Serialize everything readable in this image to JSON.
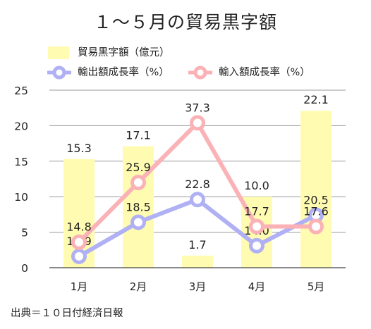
{
  "chart_data": {
    "type": "bar+line",
    "title": "１～５月の貿易黒字額",
    "categories": [
      "1月",
      "2月",
      "3月",
      "4月",
      "5月"
    ],
    "ylim": [
      0,
      25
    ],
    "yticks": [
      0,
      5,
      10,
      15,
      20,
      25
    ],
    "grid": true,
    "legend_position": "top-left",
    "series": [
      {
        "name": "貿易黒字額（億元）",
        "type": "bar",
        "color": "#fffcb2",
        "values": [
          15.3,
          17.1,
          1.7,
          10.0,
          22.1
        ],
        "labels": [
          "15.3",
          "17.1",
          "1.7",
          "10.0",
          "22.1"
        ]
      },
      {
        "name": "輸出額成長率（%）",
        "type": "line",
        "color": "#b0b0f4",
        "values": [
          1.6,
          6.4,
          9.6,
          3.1,
          7.4
        ],
        "labels": [
          "11.9",
          "18.5",
          "22.8",
          "14.0",
          "20.5"
        ]
      },
      {
        "name": "輸入額成長率（%）",
        "type": "line",
        "color": "#fab2b6",
        "values": [
          3.6,
          12.0,
          20.4,
          5.8,
          5.8
        ],
        "labels": [
          "14.8",
          "25.9",
          "37.3",
          "17.7",
          "17.6"
        ]
      }
    ]
  },
  "legend": {
    "bar_label": "貿易黒字額（億元）",
    "export_label": "輸出額成長率（%）",
    "import_label": "輸入額成長率（%）"
  },
  "source_note": "出典＝１０日付経済日報"
}
